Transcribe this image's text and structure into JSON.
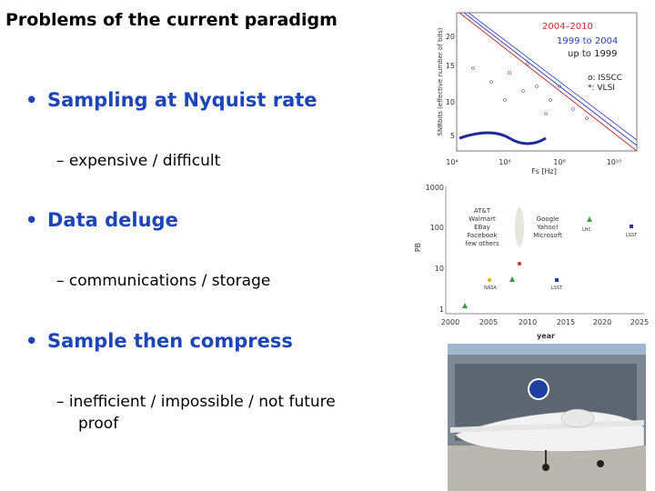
{
  "slide": {
    "title": "Problems of the current paradigm",
    "bullets": [
      {
        "text": "Sampling at Nyquist rate",
        "sub": [
          "– expensive / difficult"
        ]
      },
      {
        "text": "Data deluge",
        "sub": [
          "– communications / storage"
        ]
      },
      {
        "text": "Sample then compress",
        "sub": [
          "– inefficient / impossible / not future",
          "proof"
        ]
      }
    ],
    "adc_figure": {
      "y_label": "SNRbits (effective number of bits)",
      "x_label": "Fs [Hz]",
      "yticks": [
        "20",
        "15",
        "10",
        "5"
      ],
      "xticks": [
        "10⁴",
        "10⁶",
        "10⁸",
        "10¹⁰"
      ],
      "legend": [
        "2004–2010",
        "1999 to 2004",
        "up to 1999",
        "o: ISSCC",
        "*: VLSI"
      ]
    },
    "data_figure": {
      "y_label": "PB",
      "x_label": "year",
      "yticks": [
        "1000",
        "100",
        "10",
        "1"
      ],
      "xticks": [
        "2000",
        "2005",
        "2010",
        "2015",
        "2020",
        "2025"
      ],
      "labels": [
        "AT&T",
        "Walmart",
        "EBay",
        "Facebook",
        "few others",
        "Google",
        "Yahoo!",
        "Microsoft",
        "LHC",
        "LSST",
        "NASA",
        "LSST"
      ]
    }
  }
}
